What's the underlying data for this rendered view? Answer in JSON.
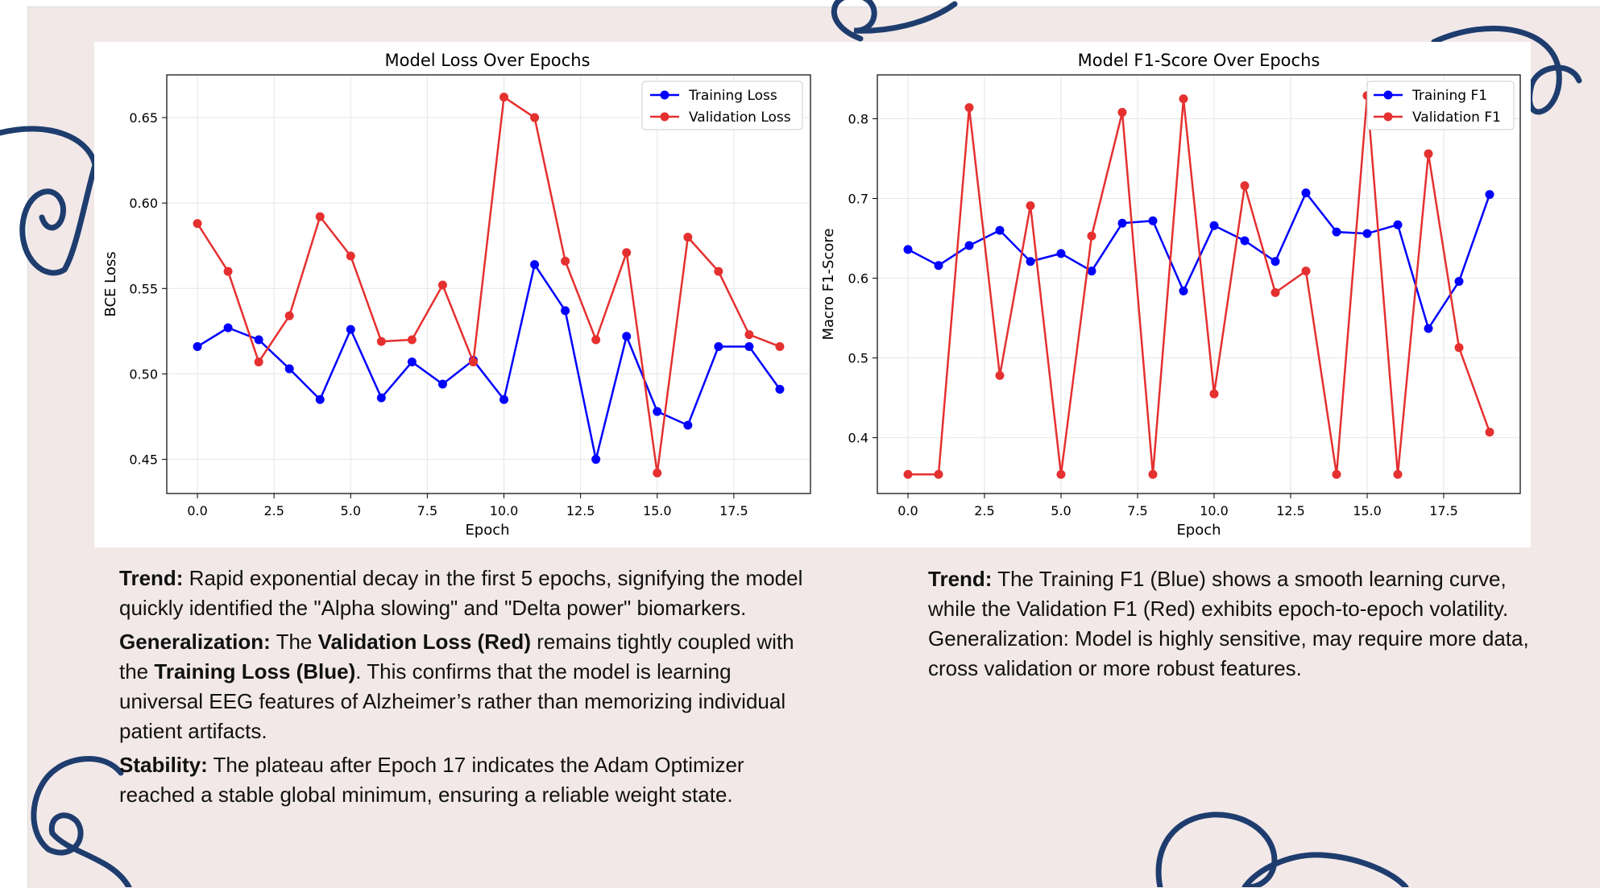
{
  "colors": {
    "background": "#f2e8e8",
    "training": "#0000ff",
    "validation": "#e53030",
    "decoration": "#1e3d6e"
  },
  "chart_data": [
    {
      "type": "line",
      "title": "Model Loss Over Epochs",
      "xlabel": "Epoch",
      "ylabel": "BCE Loss",
      "xlim": [
        -1,
        20
      ],
      "ylim": [
        0.43,
        0.675
      ],
      "xticks": [
        "0.0",
        "2.5",
        "5.0",
        "7.5",
        "10.0",
        "12.5",
        "15.0",
        "17.5"
      ],
      "yticks": [
        "0.45",
        "0.50",
        "0.55",
        "0.60",
        "0.65"
      ],
      "grid": true,
      "legend_position": "top-right",
      "x": [
        0,
        1,
        2,
        3,
        4,
        5,
        6,
        7,
        8,
        9,
        10,
        11,
        12,
        13,
        14,
        15,
        16,
        17,
        18,
        19
      ],
      "series": [
        {
          "name": "Training Loss",
          "color": "#0000ff",
          "values": [
            0.516,
            0.527,
            0.52,
            0.503,
            0.485,
            0.526,
            0.486,
            0.507,
            0.494,
            0.508,
            0.485,
            0.564,
            0.537,
            0.45,
            0.522,
            0.478,
            0.47,
            0.516,
            0.516,
            0.491
          ]
        },
        {
          "name": "Validation Loss",
          "color": "#e53030",
          "values": [
            0.588,
            0.56,
            0.507,
            0.534,
            0.592,
            0.569,
            0.519,
            0.52,
            0.552,
            0.507,
            0.662,
            0.65,
            0.566,
            0.52,
            0.571,
            0.442,
            0.58,
            0.56,
            0.523,
            0.516
          ]
        }
      ]
    },
    {
      "type": "line",
      "title": "Model F1-Score Over Epochs",
      "xlabel": "Epoch",
      "ylabel": "Macro F1-Score",
      "xlim": [
        -1,
        20
      ],
      "ylim": [
        0.33,
        0.855
      ],
      "xticks": [
        "0.0",
        "2.5",
        "5.0",
        "7.5",
        "10.0",
        "12.5",
        "15.0",
        "17.5"
      ],
      "yticks": [
        "0.4",
        "0.5",
        "0.6",
        "0.7",
        "0.8"
      ],
      "grid": true,
      "legend_position": "top-right",
      "x": [
        0,
        1,
        2,
        3,
        4,
        5,
        6,
        7,
        8,
        9,
        10,
        11,
        12,
        13,
        14,
        15,
        16,
        17,
        18,
        19
      ],
      "series": [
        {
          "name": "Training F1",
          "color": "#0000ff",
          "values": [
            0.636,
            0.616,
            0.641,
            0.66,
            0.621,
            0.631,
            0.609,
            0.669,
            0.672,
            0.584,
            0.666,
            0.647,
            0.621,
            0.707,
            0.658,
            0.656,
            0.667,
            0.537,
            0.596,
            0.705
          ]
        },
        {
          "name": "Validation F1",
          "color": "#e53030",
          "values": [
            0.354,
            0.354,
            0.814,
            0.478,
            0.691,
            0.354,
            0.653,
            0.808,
            0.354,
            0.825,
            0.455,
            0.716,
            0.582,
            0.609,
            0.354,
            0.829,
            0.354,
            0.756,
            0.513,
            0.407
          ]
        }
      ]
    }
  ],
  "left_text": {
    "trend_label": "Trend:",
    "trend_text": " Rapid exponential decay in the first 5 epochs, signifying the model quickly identified the \"Alpha slowing\" and \"Delta power\" biomarkers.",
    "gen_label": "Generalization:",
    "gen_text_1": " The ",
    "gen_bold_1": "Validation Loss (Red)",
    "gen_text_2": " remains tightly coupled with the ",
    "gen_bold_2": "Training Loss (Blue)",
    "gen_text_3": ". This confirms that the model is learning universal EEG features of Alzheimer’s rather than memorizing individual patient artifacts.",
    "stab_label": "Stability:",
    "stab_text": " The plateau after Epoch 17 indicates the Adam Optimizer reached a stable global minimum, ensuring a reliable weight state."
  },
  "right_text": {
    "trend_label": "Trend:",
    "trend_text": " The Training F1 (Blue) shows a smooth learning curve, while the Validation F1 (Red) exhibits epoch-to-epoch volatility.",
    "gen_text": "Generalization: Model is highly sensitive, may require more data, cross validation or more robust features."
  }
}
